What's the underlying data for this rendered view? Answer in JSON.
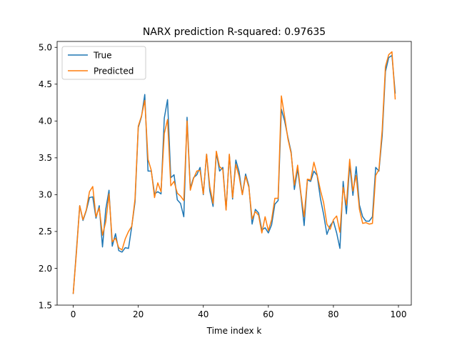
{
  "chart_data": {
    "type": "line",
    "title": "NARX prediction R-squared: 0.97635",
    "xlabel": "Time index k",
    "ylabel": "",
    "xlim": [
      -4.95,
      103.95
    ],
    "ylim": [
      1.5,
      5.08
    ],
    "xticks": [
      0,
      20,
      40,
      60,
      80,
      100
    ],
    "yticks": [
      1.5,
      2.0,
      2.5,
      3.0,
      3.5,
      4.0,
      4.5,
      5.0
    ],
    "xtick_labels": [
      "0",
      "20",
      "40",
      "60",
      "80",
      "100"
    ],
    "ytick_labels": [
      "1.5",
      "2.0",
      "2.5",
      "3.0",
      "3.5",
      "4.0",
      "4.5",
      "5.0"
    ],
    "legend_position": "top-left",
    "grid": false,
    "series": [
      {
        "name": "True",
        "color": "#1f77b4",
        "values": [
          1.66,
          2.25,
          2.85,
          2.65,
          2.78,
          2.96,
          2.97,
          2.68,
          2.85,
          2.29,
          2.8,
          3.06,
          2.3,
          2.47,
          2.24,
          2.22,
          2.28,
          2.27,
          2.57,
          2.9,
          3.91,
          4.06,
          4.36,
          3.32,
          3.32,
          3.01,
          3.04,
          3.01,
          4.04,
          4.29,
          3.23,
          3.27,
          2.93,
          2.88,
          2.7,
          4.05,
          3.09,
          3.23,
          3.27,
          3.37,
          3.0,
          3.55,
          3.05,
          2.84,
          3.57,
          3.32,
          3.37,
          2.8,
          3.54,
          2.94,
          3.47,
          3.31,
          3.0,
          3.28,
          3.12,
          2.6,
          2.8,
          2.75,
          2.52,
          2.55,
          2.48,
          2.59,
          2.87,
          2.92,
          4.16,
          4.0,
          3.78,
          3.58,
          3.07,
          3.35,
          3.0,
          2.58,
          3.2,
          3.18,
          3.32,
          3.26,
          2.95,
          2.73,
          2.46,
          2.58,
          2.64,
          2.48,
          2.27,
          3.18,
          2.74,
          3.41,
          2.99,
          3.38,
          2.86,
          2.7,
          2.64,
          2.64,
          2.7,
          3.37,
          3.32,
          3.8,
          4.67,
          4.86,
          4.89,
          4.38
        ]
      },
      {
        "name": "Predicted",
        "color": "#ff7f0e",
        "values": [
          1.66,
          2.22,
          2.85,
          2.66,
          2.79,
          3.04,
          3.11,
          2.7,
          2.82,
          2.45,
          2.63,
          3.01,
          2.36,
          2.41,
          2.28,
          2.25,
          2.4,
          2.5,
          2.57,
          2.94,
          3.93,
          4.07,
          4.28,
          3.48,
          3.33,
          2.96,
          3.16,
          3.04,
          3.83,
          4.02,
          3.12,
          3.18,
          3.02,
          2.98,
          2.92,
          4.0,
          3.06,
          3.22,
          3.32,
          3.33,
          3.01,
          3.55,
          3.11,
          2.88,
          3.59,
          3.38,
          3.34,
          2.79,
          3.55,
          2.96,
          3.41,
          3.25,
          3.0,
          3.25,
          3.1,
          2.67,
          2.77,
          2.72,
          2.48,
          2.7,
          2.51,
          2.66,
          2.95,
          2.95,
          4.34,
          4.06,
          3.76,
          3.56,
          3.13,
          3.4,
          3.02,
          2.7,
          3.21,
          3.2,
          3.44,
          3.27,
          3.06,
          2.89,
          2.6,
          2.53,
          2.66,
          2.71,
          2.49,
          3.1,
          2.86,
          3.48,
          3.05,
          3.26,
          2.8,
          2.61,
          2.62,
          2.6,
          2.61,
          3.26,
          3.34,
          3.88,
          4.74,
          4.9,
          4.94,
          4.3
        ]
      }
    ]
  }
}
